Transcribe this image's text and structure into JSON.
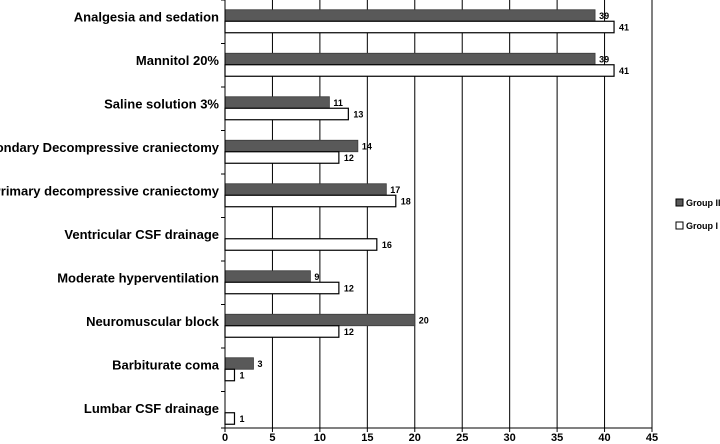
{
  "chart_data": {
    "type": "bar",
    "orientation": "horizontal",
    "categories": [
      "Analgesia and sedation",
      "Mannitol 20%",
      "Saline solution 3%",
      "Secondary Decompressive craniectomy",
      "Primary decompressive craniectomy",
      "Ventricular CSF drainage",
      "Moderate hyperventilation",
      "Neuromuscular block",
      "Barbiturate coma",
      "Lumbar CSF drainage"
    ],
    "series": [
      {
        "name": "Group II",
        "color": "#595959",
        "values": [
          39,
          39,
          11,
          14,
          17,
          null,
          9,
          20,
          3,
          null
        ]
      },
      {
        "name": "Group I",
        "color": "#ffffff",
        "values": [
          41,
          41,
          13,
          12,
          18,
          16,
          12,
          12,
          1,
          1
        ]
      }
    ],
    "xlim": [
      0,
      45
    ],
    "xticks": [
      "0",
      "5",
      "10",
      "15",
      "20",
      "25",
      "30",
      "35",
      "40",
      "45"
    ],
    "grid": true,
    "legend": {
      "position": "right",
      "entries": [
        "Group II",
        "Group I"
      ]
    }
  }
}
